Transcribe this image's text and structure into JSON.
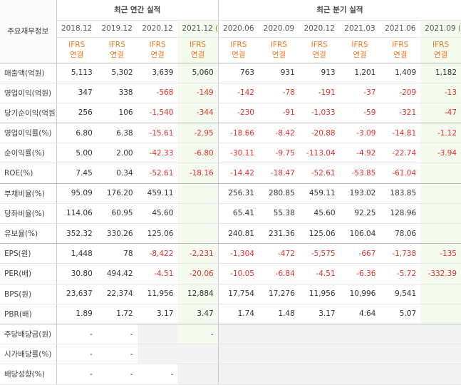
{
  "header": {
    "label": "주요재무정보",
    "groups": [
      "최근 연간 실적",
      "최근 분기 실적"
    ],
    "periods": [
      {
        "label": "2018.12"
      },
      {
        "label": "2019.12"
      },
      {
        "label": "2020.12"
      },
      {
        "label": "2021.12",
        "est": "(E)"
      },
      {
        "label": "2020.06"
      },
      {
        "label": "2020.09"
      },
      {
        "label": "2020.12"
      },
      {
        "label": "2021.03"
      },
      {
        "label": "2021.06"
      },
      {
        "label": "2021.09",
        "est": "(E)"
      }
    ],
    "basis": [
      "IFRS",
      "연결"
    ]
  },
  "table": {
    "rows": [
      {
        "label": "매출액(억원)",
        "cells": [
          "5,113",
          "5,302",
          "3,639",
          "5,060",
          "763",
          "931",
          "913",
          "1,201",
          "1,409",
          "1,182"
        ]
      },
      {
        "label": "영업이익(억원)",
        "cells": [
          "347",
          "338",
          "-568",
          "-149",
          "-142",
          "-78",
          "-191",
          "-37",
          "-209",
          "-13"
        ]
      },
      {
        "label": "당기순이익(억원)",
        "cells": [
          "256",
          "106",
          "-1,540",
          "-344",
          "-230",
          "-91",
          "-1,033",
          "-59",
          "-321",
          "-47"
        ]
      },
      {
        "label": "영업이익률(%)",
        "cells": [
          "6.80",
          "6.38",
          "-15.61",
          "-2.95",
          "-18.66",
          "-8.42",
          "-20.88",
          "-3.09",
          "-14.81",
          "-1.12"
        ]
      },
      {
        "label": "순이익률(%)",
        "cells": [
          "5.00",
          "2.00",
          "-42.33",
          "-6.80",
          "-30.11",
          "-9.75",
          "-113.04",
          "-4.92",
          "-22.74",
          "-3.94"
        ]
      },
      {
        "label": "ROE(%)",
        "cells": [
          "7.45",
          "0.34",
          "-52.61",
          "-18.16",
          "-14.42",
          "-18.47",
          "-52.61",
          "-53.85",
          "-61.04",
          null
        ]
      },
      {
        "label": "부채비율(%)",
        "cells": [
          "95.09",
          "176.20",
          "459.11",
          null,
          "256.31",
          "280.85",
          "459.11",
          "193.02",
          "183.85",
          null
        ]
      },
      {
        "label": "당좌비율(%)",
        "cells": [
          "114.06",
          "60.95",
          "45.60",
          null,
          "65.41",
          "55.38",
          "45.60",
          "92.25",
          "128.96",
          null
        ]
      },
      {
        "label": "유보율(%)",
        "cells": [
          "352.32",
          "330.26",
          "125.06",
          null,
          "240.81",
          "231.36",
          "125.06",
          "106.04",
          "78.06",
          null
        ]
      },
      {
        "label": "EPS(원)",
        "cells": [
          "1,448",
          "78",
          "-8,422",
          "-2,231",
          "-1,304",
          "-472",
          "-5,575",
          "-667",
          "-1,738",
          "-135"
        ]
      },
      {
        "label": "PER(배)",
        "cells": [
          "30.80",
          "494.42",
          "-4.51",
          "-20.06",
          "-10.05",
          "-6.84",
          "-4.51",
          "-6.36",
          "-5.72",
          "-332.39"
        ]
      },
      {
        "label": "BPS(원)",
        "cells": [
          "23,637",
          "22,374",
          "11,956",
          "12,884",
          "17,754",
          "17,276",
          "11,956",
          "10,996",
          "9,541",
          null
        ]
      },
      {
        "label": "PBR(배)",
        "cells": [
          "1.89",
          "1.72",
          "3.17",
          "3.47",
          "1.74",
          "1.48",
          "3.17",
          "4.64",
          "5.07",
          null
        ]
      },
      {
        "label": "주당배당금(원)",
        "cells": [
          "-",
          "-",
          null,
          "-",
          null,
          null,
          null,
          null,
          null,
          null
        ]
      },
      {
        "label": "시가배당률(%)",
        "cells": [
          "-",
          "-",
          null,
          null,
          null,
          null,
          null,
          null,
          null,
          null
        ]
      },
      {
        "label": "배당성향(%)",
        "cells": [
          "-",
          "-",
          "-",
          null,
          null,
          null,
          null,
          null,
          null,
          null
        ]
      }
    ]
  }
}
